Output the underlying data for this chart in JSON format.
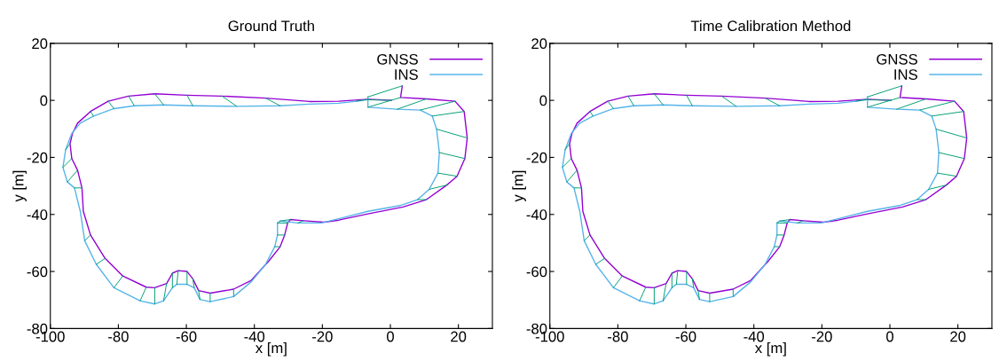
{
  "chart_data": [
    {
      "type": "line",
      "title": "Ground Truth",
      "xlabel": "x [m]",
      "ylabel": "y [m]",
      "xlim": [
        -100,
        30
      ],
      "ylim": [
        -80,
        20
      ],
      "xticks": [
        -100,
        -80,
        -60,
        -40,
        -20,
        0,
        20
      ],
      "yticks": [
        -80,
        -60,
        -40,
        -20,
        0,
        20
      ],
      "grid": false,
      "legend": "top right",
      "series": [
        {
          "name": "GNSS",
          "color": "#9400d3",
          "x": [
            3.5,
            3,
            10.6,
            19,
            21.7,
            22.6,
            21.9,
            19.6,
            16.6,
            10.6,
            3.7,
            -6.6,
            -15.2,
            -19.5,
            -25.5,
            -29.4,
            -30.2,
            -31.1,
            -32.4,
            -35.8,
            -40.9,
            -46.1,
            -53,
            -56.4,
            -58.1,
            -59.8,
            -62.4,
            -64.1,
            -65.8,
            -69.3,
            -71.8,
            -78.7,
            -83.9,
            -88.2,
            -90.3,
            -90.7,
            -92,
            -93.7,
            -94.2,
            -93.5,
            -92,
            -88.2,
            -83,
            -77,
            -69.3,
            -59.8,
            -49.5,
            -36.7,
            -23.8,
            -15.2,
            -6.6,
            0.3
          ],
          "values": [
            5.1,
            1,
            0.5,
            -0.3,
            -3.9,
            -13.2,
            -20.4,
            -26.6,
            -29.7,
            -34.8,
            -37.4,
            -39.8,
            -42,
            -42.7,
            -42.2,
            -41.8,
            -43,
            -47.2,
            -51.3,
            -56.4,
            -63.1,
            -66.2,
            -67.6,
            -66.7,
            -62.6,
            -60,
            -59.7,
            -60.6,
            -64.2,
            -65.7,
            -65.5,
            -61.6,
            -55.4,
            -47.2,
            -38.9,
            -30.7,
            -24.5,
            -20.4,
            -15.2,
            -11.6,
            -8,
            -3.9,
            -0.3,
            1.5,
            2.3,
            1.8,
            1.5,
            0.8,
            -0.4,
            -0.3,
            0.4,
            0
          ]
        },
        {
          "name": "INS",
          "color": "#56b4e9",
          "x": [
            -6.6,
            -6.6,
            2,
            8.8,
            12.3,
            13.6,
            14.4,
            14,
            11.4,
            8,
            2.8,
            -6.6,
            -15.2,
            -20.3,
            -27.2,
            -32.4,
            -33.2,
            -33.2,
            -34,
            -36.7,
            -40.9,
            -46.1,
            -53,
            -56,
            -57.7,
            -59.8,
            -62.8,
            -64.1,
            -66.7,
            -69.3,
            -73.6,
            -81.3,
            -86.5,
            -89.9,
            -91.2,
            -92.9,
            -95,
            -96.3,
            -95.5,
            -93.7,
            -91.2,
            -87.3,
            -81.3,
            -75.3,
            -66.7,
            -58.1,
            -45.2,
            -32.4,
            -23.8,
            -15.2,
            -10,
            -6.6
          ],
          "values": [
            1.2,
            -2.4,
            -3.1,
            -3.4,
            -5.5,
            -10.1,
            -18.3,
            -25.5,
            -31.2,
            -34.8,
            -36.9,
            -38.9,
            -41.5,
            -43,
            -43,
            -42.3,
            -43,
            -47.2,
            -51.3,
            -57.5,
            -63.6,
            -68.8,
            -70.6,
            -69.8,
            -65.7,
            -64.5,
            -64.5,
            -65.7,
            -70.3,
            -71.4,
            -70.3,
            -65.7,
            -57.5,
            -49.2,
            -38.9,
            -30.7,
            -28.6,
            -23.5,
            -17.3,
            -11.6,
            -8,
            -5.5,
            -2.9,
            -1.9,
            -1.6,
            -1.9,
            -2.1,
            -1.9,
            -1.3,
            -1,
            -0.3,
            0.2
          ]
        },
        {
          "type": "line",
          "color": "#009e73",
          "x": [
            3.5,
            -6.6,
            null,
            3,
            -6.6,
            null,
            10.6,
            2,
            null,
            19,
            8.8,
            null,
            21.7,
            12.3,
            null,
            22.6,
            13.6,
            null,
            21.9,
            14.4,
            null,
            19.6,
            14,
            null,
            16.6,
            11.4,
            null,
            10.6,
            8,
            null,
            -25.5,
            -27.2,
            null,
            -29.4,
            -32.4,
            null,
            -30.2,
            -33.2,
            null,
            -31.1,
            -33.2,
            null,
            -32.4,
            -34,
            null,
            -46.1,
            -46.1,
            null,
            -53,
            -53,
            null,
            -56.4,
            -56,
            null,
            -58.1,
            -57.7,
            null,
            -59.8,
            -59.8,
            null,
            -62.4,
            -62.8,
            null,
            -64.1,
            -64.1,
            null,
            -65.8,
            -66.7,
            null,
            -69.3,
            -69.3,
            null,
            -71.8,
            -73.6,
            null,
            -78.7,
            -81.3,
            null,
            -83.9,
            -86.5,
            null,
            -88.2,
            -89.9,
            null,
            -90.7,
            -92.9,
            null,
            -92,
            -95,
            null,
            -93.7,
            -96.3,
            null,
            -94.2,
            -95.5,
            null,
            -88.2,
            -87.3,
            null,
            -83,
            -81.3,
            null,
            -77,
            -75.3,
            null,
            -69.3,
            -66.7,
            null,
            -59.8,
            -58.1,
            null,
            -49.5,
            -45.2,
            null,
            -36.7,
            -32.4,
            null,
            -6.6,
            -10,
            null,
            0.3,
            -6.6
          ],
          "values": [
            5.1,
            1.2,
            null,
            1,
            -2.4,
            null,
            0.5,
            -3.1,
            null,
            -0.3,
            -3.4,
            null,
            -3.9,
            -5.5,
            null,
            -13.2,
            -10.1,
            null,
            -20.4,
            -18.3,
            null,
            -26.6,
            -25.5,
            null,
            -29.7,
            -31.2,
            null,
            -34.8,
            -34.8,
            null,
            -42.2,
            -43,
            null,
            -41.8,
            -42.3,
            null,
            -43,
            -43,
            null,
            -47.2,
            -47.2,
            null,
            -51.3,
            -51.3,
            null,
            -66.2,
            -68.8,
            null,
            -67.6,
            -70.6,
            null,
            -66.7,
            -69.8,
            null,
            -62.6,
            -65.7,
            null,
            -60,
            -64.5,
            null,
            -59.7,
            -64.5,
            null,
            -60.6,
            -65.7,
            null,
            -64.2,
            -70.3,
            null,
            -65.7,
            -71.4,
            null,
            -65.5,
            -70.3,
            null,
            -61.6,
            -65.7,
            null,
            -55.4,
            -57.5,
            null,
            -47.2,
            -49.2,
            null,
            -30.7,
            -30.7,
            null,
            -24.5,
            -28.6,
            null,
            -20.4,
            -23.5,
            null,
            -15.2,
            -17.3,
            null,
            -3.9,
            -5.5,
            null,
            -0.3,
            -2.9,
            null,
            1.5,
            -1.9,
            null,
            2.3,
            -1.6,
            null,
            1.8,
            -1.9,
            null,
            1.5,
            -2.1,
            null,
            0.8,
            -1.9,
            null,
            0.4,
            -0.3,
            null,
            0,
            0.2
          ]
        }
      ]
    },
    {
      "type": "line",
      "title": "Time Calibration Method",
      "xlabel": "x [m]",
      "ylabel": "y [m]",
      "xlim": [
        -100,
        30
      ],
      "ylim": [
        -80,
        20
      ],
      "xticks": [
        -100,
        -80,
        -60,
        -40,
        -20,
        0,
        20
      ],
      "yticks": [
        -80,
        -60,
        -40,
        -20,
        0,
        20
      ],
      "grid": false,
      "legend": "top right",
      "series": [
        {
          "name": "GNSS",
          "color": "#9400d3",
          "x": [
            3.5,
            3,
            10.6,
            19,
            21.7,
            22.6,
            21.9,
            19.6,
            16.6,
            10.6,
            3.7,
            -6.6,
            -15.2,
            -19.5,
            -25.5,
            -29.4,
            -30.2,
            -31.1,
            -32.4,
            -35.8,
            -40.9,
            -46.1,
            -53,
            -56.4,
            -58.1,
            -59.8,
            -62.4,
            -64.1,
            -65.8,
            -69.3,
            -71.8,
            -78.7,
            -83.9,
            -88.2,
            -90.3,
            -90.7,
            -92,
            -93.7,
            -94.2,
            -93.5,
            -92,
            -88.2,
            -83,
            -77,
            -69.3,
            -59.8,
            -49.5,
            -36.7,
            -23.8,
            -15.2,
            -6.6,
            0.3
          ],
          "values": [
            5.1,
            1,
            0.5,
            -0.3,
            -3.9,
            -13.2,
            -20.4,
            -26.6,
            -29.7,
            -34.8,
            -37.4,
            -39.8,
            -42,
            -42.7,
            -42.2,
            -41.8,
            -43,
            -47.2,
            -51.3,
            -56.4,
            -63.1,
            -66.2,
            -67.6,
            -66.7,
            -62.6,
            -60,
            -59.7,
            -60.6,
            -64.2,
            -65.7,
            -65.5,
            -61.6,
            -55.4,
            -47.2,
            -38.9,
            -30.7,
            -24.5,
            -20.4,
            -15.2,
            -11.6,
            -8,
            -3.9,
            -0.3,
            1.5,
            2.3,
            1.8,
            1.5,
            0.8,
            -0.4,
            -0.3,
            0.4,
            0
          ]
        },
        {
          "name": "INS",
          "color": "#56b4e9",
          "x": [
            -6.6,
            -6.6,
            2,
            8.8,
            12.3,
            13.6,
            14.4,
            14,
            11.4,
            8,
            2.8,
            -6.6,
            -15.2,
            -20.3,
            -27.2,
            -32.4,
            -33.2,
            -33.2,
            -34,
            -36.7,
            -40.9,
            -46.1,
            -53,
            -56,
            -57.7,
            -59.8,
            -62.8,
            -64.1,
            -66.7,
            -69.3,
            -73.6,
            -81.3,
            -86.5,
            -89.9,
            -91.2,
            -92.9,
            -95,
            -96.3,
            -95.5,
            -93.7,
            -91.2,
            -87.3,
            -81.3,
            -75.3,
            -66.7,
            -58.1,
            -45.2,
            -32.4,
            -23.8,
            -15.2,
            -10,
            -6.6
          ],
          "values": [
            1.2,
            -2.4,
            -3.1,
            -3.4,
            -5.5,
            -10.1,
            -18.3,
            -25.5,
            -31.2,
            -34.8,
            -36.9,
            -38.9,
            -41.5,
            -43,
            -43,
            -42.3,
            -43,
            -47.2,
            -51.3,
            -57.5,
            -63.6,
            -68.8,
            -70.6,
            -69.8,
            -65.7,
            -64.5,
            -64.5,
            -65.7,
            -70.3,
            -71.4,
            -70.3,
            -65.7,
            -57.5,
            -49.2,
            -38.9,
            -30.7,
            -28.6,
            -23.5,
            -17.3,
            -11.6,
            -8,
            -5.5,
            -2.9,
            -1.9,
            -1.6,
            -1.9,
            -2.1,
            -1.9,
            -1.3,
            -1,
            -0.3,
            0.2
          ]
        },
        {
          "type": "line",
          "color": "#009e73",
          "x": [
            3.5,
            -6.6,
            null,
            3,
            -6.6,
            null,
            10.6,
            2,
            null,
            19,
            8.8,
            null,
            21.7,
            12.3,
            null,
            22.6,
            13.6,
            null,
            21.9,
            14.4,
            null,
            19.6,
            14,
            null,
            16.6,
            11.4,
            null,
            10.6,
            8,
            null,
            -25.5,
            -27.2,
            null,
            -29.4,
            -32.4,
            null,
            -30.2,
            -33.2,
            null,
            -31.1,
            -33.2,
            null,
            -32.4,
            -34,
            null,
            -46.1,
            -46.1,
            null,
            -53,
            -53,
            null,
            -56.4,
            -56,
            null,
            -58.1,
            -57.7,
            null,
            -59.8,
            -59.8,
            null,
            -62.4,
            -62.8,
            null,
            -64.1,
            -64.1,
            null,
            -65.8,
            -66.7,
            null,
            -69.3,
            -69.3,
            null,
            -71.8,
            -73.6,
            null,
            -78.7,
            -81.3,
            null,
            -83.9,
            -86.5,
            null,
            -88.2,
            -89.9,
            null,
            -90.7,
            -92.9,
            null,
            -92,
            -95,
            null,
            -93.7,
            -96.3,
            null,
            -94.2,
            -95.5,
            null,
            -88.2,
            -87.3,
            null,
            -83,
            -81.3,
            null,
            -77,
            -75.3,
            null,
            -69.3,
            -66.7,
            null,
            -59.8,
            -58.1,
            null,
            -49.5,
            -45.2,
            null,
            -36.7,
            -32.4,
            null,
            -6.6,
            -10,
            null,
            0.3,
            -6.6
          ],
          "values": [
            5.1,
            1.2,
            null,
            1,
            -2.4,
            null,
            0.5,
            -3.1,
            null,
            -0.3,
            -3.4,
            null,
            -3.9,
            -5.5,
            null,
            -13.2,
            -10.1,
            null,
            -20.4,
            -18.3,
            null,
            -26.6,
            -25.5,
            null,
            -29.7,
            -31.2,
            null,
            -34.8,
            -34.8,
            null,
            -42.2,
            -43,
            null,
            -41.8,
            -42.3,
            null,
            -43,
            -43,
            null,
            -47.2,
            -47.2,
            null,
            -51.3,
            -51.3,
            null,
            -66.2,
            -68.8,
            null,
            -67.6,
            -70.6,
            null,
            -66.7,
            -69.8,
            null,
            -62.6,
            -65.7,
            null,
            -60,
            -64.5,
            null,
            -59.7,
            -64.5,
            null,
            -60.6,
            -65.7,
            null,
            -64.2,
            -70.3,
            null,
            -65.7,
            -71.4,
            null,
            -65.5,
            -70.3,
            null,
            -61.6,
            -65.7,
            null,
            -55.4,
            -57.5,
            null,
            -47.2,
            -49.2,
            null,
            -30.7,
            -30.7,
            null,
            -24.5,
            -28.6,
            null,
            -20.4,
            -23.5,
            null,
            -15.2,
            -17.3,
            null,
            -3.9,
            -5.5,
            null,
            -0.3,
            -2.9,
            null,
            1.5,
            -1.9,
            null,
            2.3,
            -1.6,
            null,
            1.8,
            -1.9,
            null,
            1.5,
            -2.1,
            null,
            0.8,
            -1.9,
            null,
            0.4,
            -0.3,
            null,
            0,
            0.2
          ]
        }
      ]
    }
  ]
}
